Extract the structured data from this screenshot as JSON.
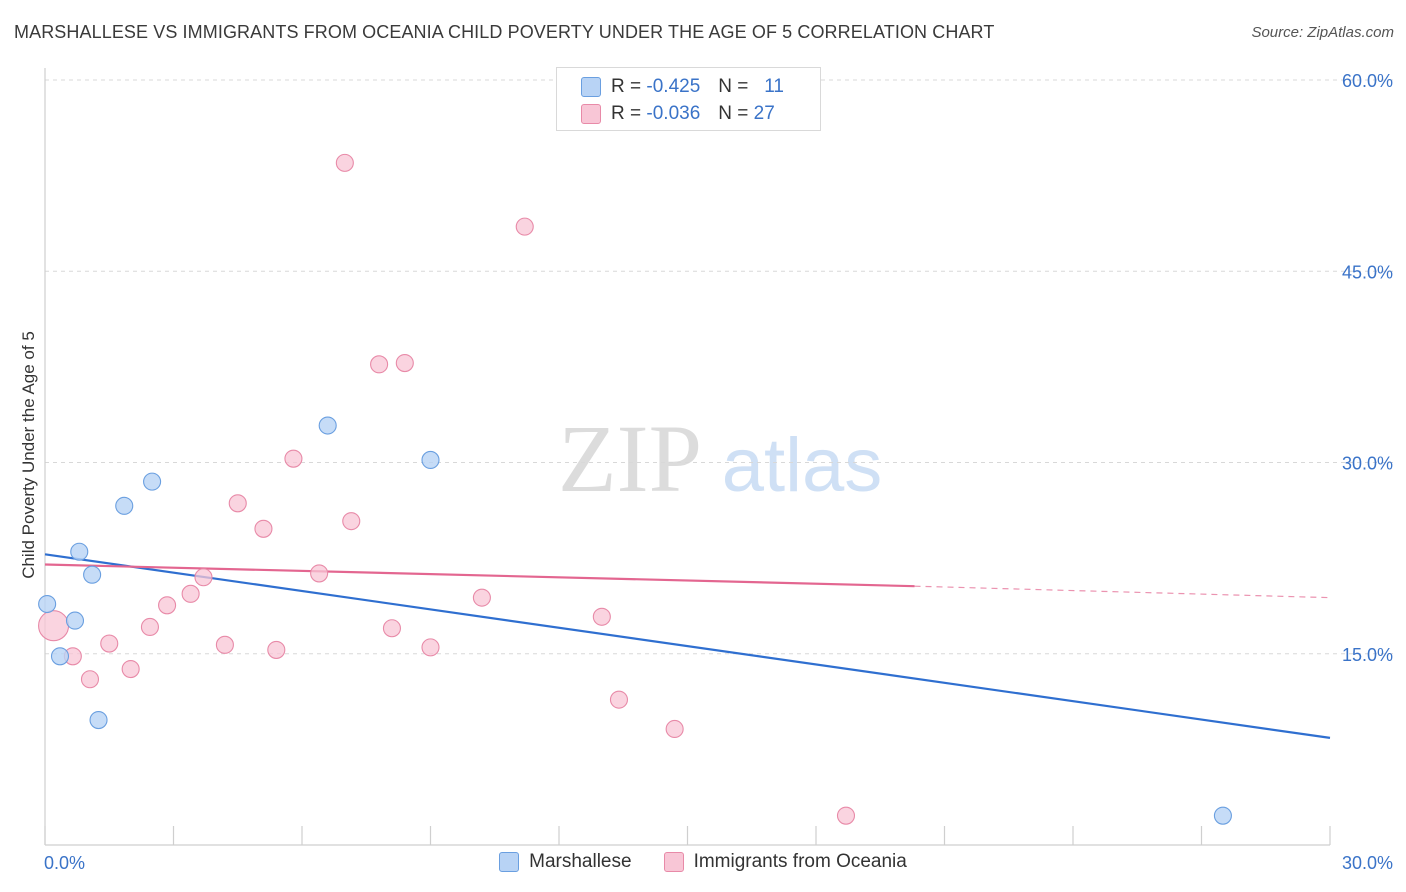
{
  "title": "MARSHALLESE VS IMMIGRANTS FROM OCEANIA CHILD POVERTY UNDER THE AGE OF 5 CORRELATION CHART",
  "source": "Source: ZipAtlas.com",
  "watermark": {
    "zip": "ZIP",
    "atlas": "atlas"
  },
  "legend": {
    "rows": [
      {
        "r_label": "R =",
        "r_value": "-0.425",
        "n_label": "N =",
        "n_value": "11"
      },
      {
        "r_label": "R =",
        "r_value": "-0.036",
        "n_label": "N =",
        "n_value": "27"
      }
    ]
  },
  "bottom_legend": [
    "Marshallese",
    "Immigrants from Oceania"
  ],
  "colors": {
    "blue_fill": "#b8d3f5",
    "blue_stroke": "#6a9fe0",
    "blue_line": "#2f6fd0",
    "pink_fill": "#f8c6d6",
    "pink_stroke": "#e88aa8",
    "pink_line": "#e36690",
    "axis_label": "#3a73c8",
    "grid": "#d8d8d8"
  },
  "chart_data": {
    "type": "scatter",
    "title": "MARSHALLESE VS IMMIGRANTS FROM OCEANIA CHILD POVERTY UNDER THE AGE OF 5 CORRELATION CHART",
    "xlabel": "",
    "ylabel": "Child Poverty Under the Age of 5",
    "xlim": [
      0,
      30
    ],
    "ylim": [
      0,
      61.5
    ],
    "x_tick_labels": [
      "0.0%",
      "30.0%"
    ],
    "y_ticks": [
      15,
      30,
      45,
      60
    ],
    "y_tick_labels": [
      "15.0%",
      "30.0%",
      "45.0%",
      "60.0%"
    ],
    "grid": true,
    "legend_position": "top-center",
    "series": [
      {
        "name": "Marshallese",
        "color": "#6a9fe0",
        "points": [
          {
            "x": 0.05,
            "y": 18.9
          },
          {
            "x": 0.35,
            "y": 14.8
          },
          {
            "x": 0.7,
            "y": 17.6
          },
          {
            "x": 0.8,
            "y": 23.0
          },
          {
            "x": 1.1,
            "y": 21.2
          },
          {
            "x": 1.25,
            "y": 9.8
          },
          {
            "x": 1.85,
            "y": 26.6
          },
          {
            "x": 2.5,
            "y": 28.5
          },
          {
            "x": 6.6,
            "y": 32.9
          },
          {
            "x": 9.0,
            "y": 30.2
          },
          {
            "x": 27.5,
            "y": 2.3
          }
        ],
        "trend": {
          "x": [
            0,
            30
          ],
          "y": [
            22.8,
            8.4
          ]
        }
      },
      {
        "name": "Immigrants from Oceania",
        "color": "#e88aa8",
        "points": [
          {
            "x": 0.2,
            "y": 17.2,
            "big": true
          },
          {
            "x": 0.65,
            "y": 14.8
          },
          {
            "x": 1.05,
            "y": 13.0
          },
          {
            "x": 1.5,
            "y": 15.8
          },
          {
            "x": 2.0,
            "y": 13.8
          },
          {
            "x": 2.45,
            "y": 17.1
          },
          {
            "x": 2.85,
            "y": 18.8
          },
          {
            "x": 3.4,
            "y": 19.7
          },
          {
            "x": 3.7,
            "y": 21.0
          },
          {
            "x": 4.2,
            "y": 15.7
          },
          {
            "x": 4.5,
            "y": 26.8
          },
          {
            "x": 5.1,
            "y": 24.8
          },
          {
            "x": 5.4,
            "y": 15.3
          },
          {
            "x": 5.8,
            "y": 30.3
          },
          {
            "x": 6.4,
            "y": 21.3
          },
          {
            "x": 7.0,
            "y": 53.5
          },
          {
            "x": 7.15,
            "y": 25.4
          },
          {
            "x": 7.8,
            "y": 37.7
          },
          {
            "x": 8.1,
            "y": 17.0
          },
          {
            "x": 8.4,
            "y": 37.8
          },
          {
            "x": 9.0,
            "y": 15.5
          },
          {
            "x": 10.2,
            "y": 19.4
          },
          {
            "x": 11.2,
            "y": 48.5
          },
          {
            "x": 13.0,
            "y": 17.9
          },
          {
            "x": 13.4,
            "y": 11.4
          },
          {
            "x": 14.7,
            "y": 9.1
          },
          {
            "x": 18.7,
            "y": 2.3
          }
        ],
        "trend": {
          "x": [
            0,
            20.3
          ],
          "y": [
            22.0,
            20.3
          ]
        },
        "trend_extension": {
          "x": [
            20.3,
            30
          ],
          "y": [
            20.3,
            19.4
          ]
        }
      }
    ]
  }
}
